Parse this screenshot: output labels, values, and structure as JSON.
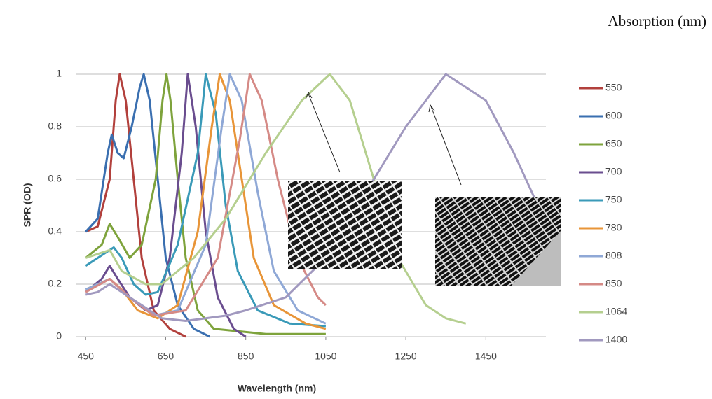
{
  "chart_data": {
    "type": "line",
    "title": "Absorption (nm)",
    "x_label": "Wavelength (nm)",
    "y_label": "SPR (OD)",
    "xlim": [
      425,
      1600
    ],
    "ylim": [
      0,
      1
    ],
    "xticks": [
      450,
      650,
      850,
      1050,
      1250,
      1450
    ],
    "yticks": [
      0,
      0.2,
      0.4,
      0.6,
      0.8,
      1
    ],
    "grid": true,
    "legend": "right",
    "series": [
      {
        "name": "550",
        "color": "#b2403c",
        "x": [
          450,
          480,
          510,
          525,
          535,
          550,
          570,
          590,
          620,
          660,
          700
        ],
        "values": [
          0.4,
          0.42,
          0.6,
          0.9,
          1,
          0.9,
          0.6,
          0.3,
          0.1,
          0.03,
          0
        ]
      },
      {
        "name": "600",
        "color": "#3a6fb0",
        "x": [
          450,
          480,
          505,
          515,
          530,
          545,
          565,
          585,
          595,
          610,
          630,
          650,
          680,
          720,
          760
        ],
        "values": [
          0.4,
          0.45,
          0.7,
          0.77,
          0.7,
          0.68,
          0.8,
          0.95,
          1,
          0.9,
          0.6,
          0.3,
          0.12,
          0.03,
          0
        ]
      },
      {
        "name": "650",
        "color": "#7ea33c",
        "x": [
          450,
          490,
          510,
          530,
          560,
          590,
          625,
          642,
          652,
          662,
          680,
          700,
          730,
          770,
          900,
          1050
        ],
        "values": [
          0.3,
          0.35,
          0.43,
          0.38,
          0.3,
          0.35,
          0.6,
          0.9,
          1,
          0.9,
          0.6,
          0.3,
          0.1,
          0.03,
          0.01,
          0.01
        ]
      },
      {
        "name": "700",
        "color": "#6a4d8f",
        "x": [
          450,
          490,
          510,
          530,
          560,
          600,
          630,
          660,
          690,
          705,
          725,
          750,
          780,
          820,
          850
        ],
        "values": [
          0.17,
          0.22,
          0.27,
          0.22,
          0.15,
          0.1,
          0.12,
          0.3,
          0.7,
          1,
          0.8,
          0.4,
          0.15,
          0.03,
          0
        ]
      },
      {
        "name": "750",
        "color": "#3a9ab8",
        "x": [
          450,
          500,
          520,
          540,
          570,
          600,
          630,
          680,
          730,
          750,
          775,
          800,
          830,
          880,
          960,
          1050
        ],
        "values": [
          0.27,
          0.32,
          0.34,
          0.3,
          0.2,
          0.16,
          0.17,
          0.35,
          0.7,
          1,
          0.85,
          0.5,
          0.25,
          0.1,
          0.05,
          0.04
        ]
      },
      {
        "name": "780",
        "color": "#e89538",
        "x": [
          450,
          510,
          540,
          580,
          630,
          680,
          730,
          765,
          785,
          810,
          840,
          870,
          920,
          1000,
          1050
        ],
        "values": [
          0.18,
          0.22,
          0.18,
          0.1,
          0.07,
          0.12,
          0.4,
          0.8,
          1,
          0.9,
          0.6,
          0.3,
          0.12,
          0.05,
          0.03
        ]
      },
      {
        "name": "808",
        "color": "#8fa8d6",
        "x": [
          450,
          510,
          560,
          620,
          680,
          750,
          790,
          810,
          840,
          880,
          920,
          980,
          1050
        ],
        "values": [
          0.18,
          0.22,
          0.15,
          0.08,
          0.1,
          0.35,
          0.8,
          1,
          0.9,
          0.55,
          0.25,
          0.1,
          0.05
        ]
      },
      {
        "name": "850",
        "color": "#d58a86",
        "x": [
          450,
          510,
          560,
          620,
          700,
          780,
          835,
          860,
          890,
          930,
          980,
          1030,
          1050
        ],
        "values": [
          0.17,
          0.22,
          0.15,
          0.08,
          0.1,
          0.3,
          0.75,
          1,
          0.9,
          0.6,
          0.3,
          0.15,
          0.12
        ]
      },
      {
        "name": "1064",
        "color": "#b5cf8f",
        "x": [
          450,
          510,
          540,
          600,
          640,
          720,
          800,
          900,
          990,
          1060,
          1110,
          1170,
          1230,
          1300,
          1350,
          1400
        ],
        "values": [
          0.3,
          0.33,
          0.25,
          0.2,
          0.2,
          0.3,
          0.45,
          0.7,
          0.9,
          1,
          0.9,
          0.6,
          0.3,
          0.12,
          0.07,
          0.05
        ]
      },
      {
        "name": "1400",
        "color": "#a199bf",
        "x": [
          450,
          480,
          510,
          560,
          640,
          700,
          800,
          850,
          950,
          1050,
          1150,
          1250,
          1350,
          1450,
          1520,
          1580
        ],
        "values": [
          0.16,
          0.17,
          0.2,
          0.15,
          0.07,
          0.06,
          0.08,
          0.1,
          0.15,
          0.3,
          0.55,
          0.8,
          1,
          0.9,
          0.7,
          0.5
        ]
      }
    ]
  }
}
